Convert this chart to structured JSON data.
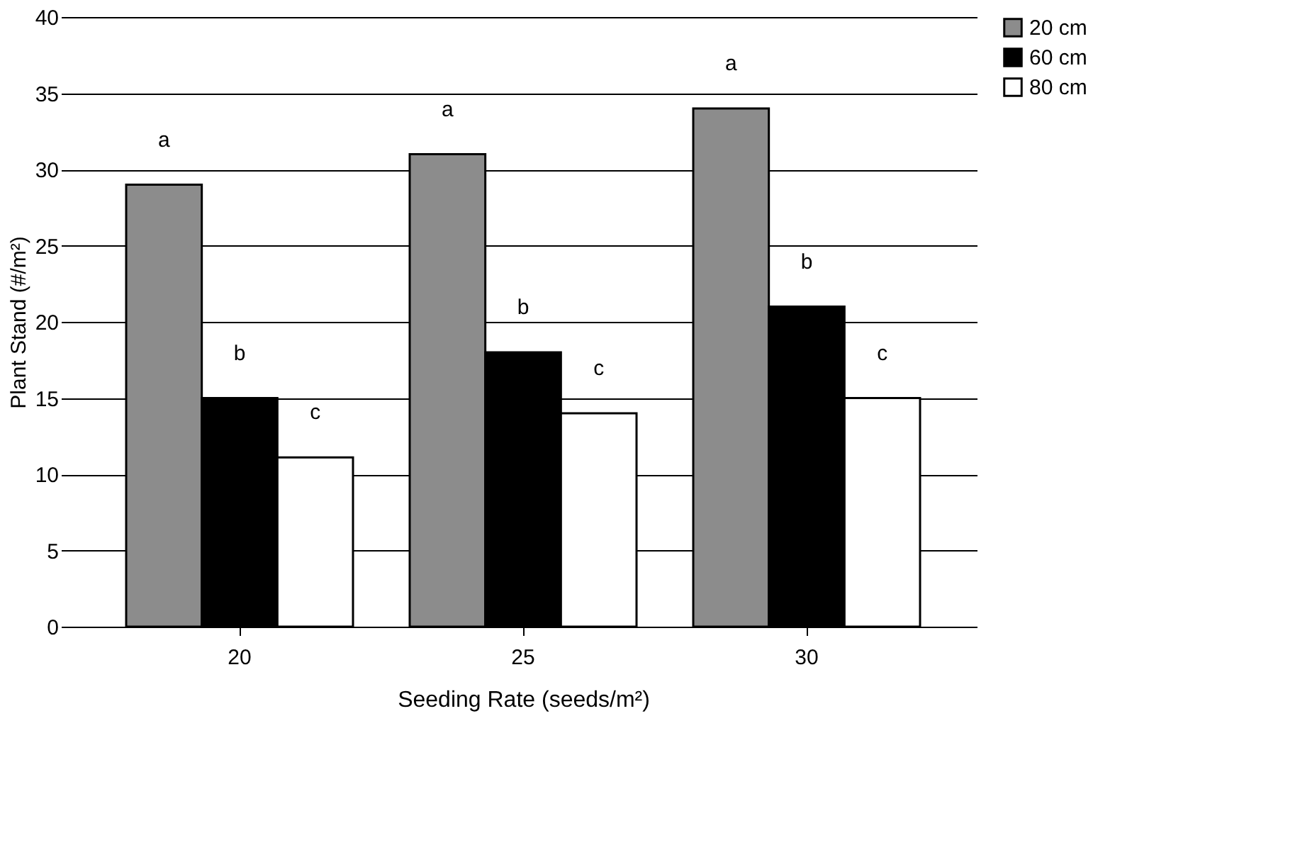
{
  "chart_data": {
    "type": "bar",
    "xlabel": "Seeding Rate (seeds/m²)",
    "ylabel": "Plant Stand (#/m²)",
    "categories": [
      "20",
      "25",
      "30"
    ],
    "series": [
      {
        "name": "20 cm",
        "color": "#8c8c8c",
        "values": [
          29,
          31,
          34
        ],
        "value_labels": [
          "a",
          "a",
          "a"
        ]
      },
      {
        "name": "60 cm",
        "color": "#000000",
        "values": [
          15,
          18,
          21
        ],
        "value_labels": [
          "b",
          "b",
          "b"
        ]
      },
      {
        "name": "80 cm",
        "color": "#ffffff",
        "values": [
          11.1,
          14,
          15
        ],
        "value_labels": [
          "c",
          "c",
          "c"
        ]
      }
    ],
    "ylim": [
      0,
      40
    ],
    "yticks": [
      0,
      5,
      10,
      15,
      20,
      25,
      30,
      35,
      40
    ],
    "grid": "y",
    "legend": "right"
  }
}
